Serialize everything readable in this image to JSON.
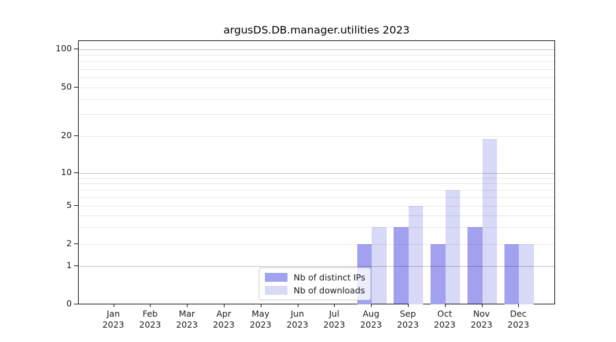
{
  "chart_data": {
    "type": "bar",
    "title": "argusDS.DB.manager.utilities 2023",
    "categories": [
      "Jan",
      "Feb",
      "Mar",
      "Apr",
      "May",
      "Jun",
      "Jul",
      "Aug",
      "Sep",
      "Oct",
      "Nov",
      "Dec"
    ],
    "year_label": "2023",
    "series": [
      {
        "name": "Nb of distinct IPs",
        "color": "#a1a1ef",
        "values": [
          0,
          0,
          0,
          0,
          0,
          0,
          0,
          2,
          3,
          2,
          3,
          2
        ]
      },
      {
        "name": "Nb of downloads",
        "color": "#d8d8f7",
        "values": [
          0,
          0,
          0,
          0,
          0,
          0,
          0,
          3,
          5,
          7,
          19,
          2
        ]
      }
    ],
    "yscale": "symlog",
    "ylim": [
      0,
      100
    ],
    "ytick_values": [
      0,
      1,
      2,
      5,
      10,
      20,
      50,
      100
    ],
    "major_gridlines": [
      1,
      10,
      100
    ],
    "minor_gridlines": [
      2,
      3,
      4,
      5,
      6,
      7,
      8,
      9,
      20,
      30,
      40,
      50,
      60,
      70,
      80,
      90
    ],
    "grid": true,
    "legend_position": "lower center"
  }
}
